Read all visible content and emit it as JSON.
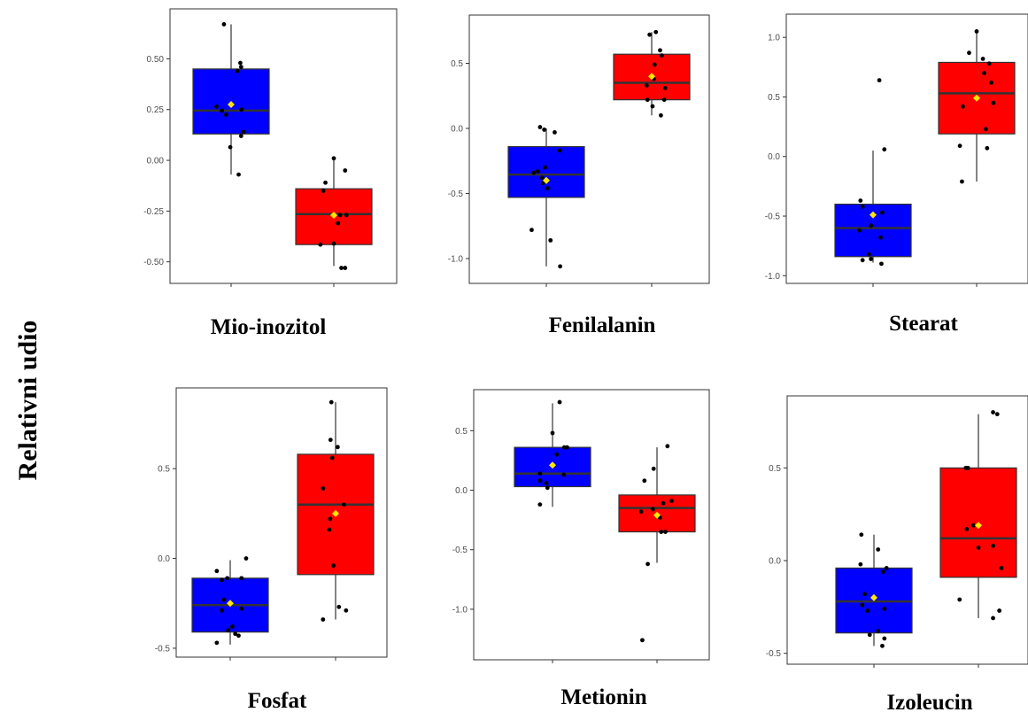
{
  "figure": {
    "ylabel": "Relativni udio"
  },
  "chart_data": [
    {
      "type": "box",
      "title": "Mio-inozitol",
      "ylim": [
        -0.58,
        0.72
      ],
      "yticks": [
        "0.50",
        "0.25",
        "0.00",
        "-0.25",
        "-0.50"
      ],
      "groups": [
        {
          "color": "#0000FF",
          "box": {
            "q1": 0.13,
            "median": 0.245,
            "q3": 0.45,
            "whisker_low": -0.07,
            "whisker_high": 0.67
          },
          "mean": 0.275,
          "points": [
            [
              -0.17,
              0.67
            ],
            [
              0.15,
              0.44
            ],
            [
              0.22,
              0.48
            ],
            [
              0.24,
              0.46
            ],
            [
              -0.35,
              0.265
            ],
            [
              -0.22,
              0.245
            ],
            [
              -0.12,
              0.225
            ],
            [
              0.25,
              0.25
            ],
            [
              0.3,
              0.14
            ],
            [
              0.24,
              0.12
            ],
            [
              -0.02,
              0.065
            ],
            [
              0.18,
              -0.07
            ]
          ]
        },
        {
          "color": "#FF0000",
          "box": {
            "q1": -0.415,
            "median": -0.265,
            "q3": -0.14,
            "whisker_low": -0.52,
            "whisker_high": 0.01
          },
          "mean": -0.27,
          "points": [
            [
              0.0,
              0.01
            ],
            [
              0.27,
              -0.05
            ],
            [
              -0.2,
              -0.11
            ],
            [
              -0.25,
              -0.15
            ],
            [
              0.15,
              -0.27
            ],
            [
              0.3,
              -0.27
            ],
            [
              0.1,
              -0.31
            ],
            [
              -0.32,
              -0.415
            ],
            [
              0.0,
              -0.41
            ],
            [
              0.18,
              -0.53
            ],
            [
              0.27,
              -0.53
            ]
          ]
        }
      ]
    },
    {
      "type": "box",
      "title": "Fenilalanin",
      "ylim": [
        -1.15,
        0.83
      ],
      "yticks": [
        "0.5",
        "0.0",
        "-0.5",
        "-1.0"
      ],
      "groups": [
        {
          "color": "#0000FF",
          "box": {
            "q1": -0.53,
            "median": -0.355,
            "q3": -0.14,
            "whisker_low": -1.06,
            "whisker_high": -0.0
          },
          "mean": -0.4,
          "points": [
            [
              -0.15,
              0.01
            ],
            [
              -0.05,
              -0.01
            ],
            [
              0.2,
              -0.03
            ],
            [
              0.32,
              -0.17
            ],
            [
              -0.3,
              -0.34
            ],
            [
              -0.2,
              -0.33
            ],
            [
              -0.1,
              -0.38
            ],
            [
              -0.03,
              -0.3
            ],
            [
              0.03,
              -0.46
            ],
            [
              -0.08,
              -0.42
            ],
            [
              -0.35,
              -0.78
            ],
            [
              0.1,
              -0.86
            ],
            [
              0.33,
              -1.06
            ]
          ]
        },
        {
          "color": "#FF0000",
          "box": {
            "q1": 0.22,
            "median": 0.35,
            "q3": 0.57,
            "whisker_low": 0.1,
            "whisker_high": 0.74
          },
          "mean": 0.4,
          "points": [
            [
              -0.05,
              0.72
            ],
            [
              0.1,
              0.74
            ],
            [
              0.2,
              0.6
            ],
            [
              0.07,
              0.49
            ],
            [
              0.24,
              0.56
            ],
            [
              -0.12,
              0.33
            ],
            [
              0.05,
              0.38
            ],
            [
              0.32,
              0.31
            ],
            [
              0.3,
              0.22
            ],
            [
              -0.1,
              0.22
            ],
            [
              0.02,
              0.17
            ],
            [
              0.22,
              0.1
            ]
          ]
        }
      ]
    },
    {
      "type": "box",
      "title": "Stearat",
      "ylim": [
        -1.02,
        1.15
      ],
      "yticks": [
        "1.0",
        "0.5",
        "0.0",
        "-0.5",
        "-1.0"
      ],
      "groups": [
        {
          "color": "#0000FF",
          "box": {
            "q1": -0.84,
            "median": -0.6,
            "q3": -0.4,
            "whisker_low": -0.89,
            "whisker_high": 0.05
          },
          "mean": -0.49,
          "points": [
            [
              0.15,
              0.64
            ],
            [
              0.27,
              0.06
            ],
            [
              -0.3,
              -0.37
            ],
            [
              -0.25,
              -0.42
            ],
            [
              0.22,
              -0.47
            ],
            [
              -0.05,
              -0.58
            ],
            [
              -0.33,
              -0.62
            ],
            [
              0.18,
              -0.68
            ],
            [
              -0.1,
              -0.82
            ],
            [
              -0.25,
              -0.87
            ],
            [
              -0.05,
              -0.86
            ],
            [
              0.2,
              -0.9
            ]
          ]
        },
        {
          "color": "#FF0000",
          "box": {
            "q1": 0.19,
            "median": 0.53,
            "q3": 0.79,
            "whisker_low": -0.21,
            "whisker_high": 1.05
          },
          "mean": 0.49,
          "points": [
            [
              0.0,
              1.05
            ],
            [
              -0.18,
              0.87
            ],
            [
              0.15,
              0.82
            ],
            [
              0.3,
              0.78
            ],
            [
              0.18,
              0.7
            ],
            [
              0.35,
              0.62
            ],
            [
              0.4,
              0.45
            ],
            [
              -0.33,
              0.42
            ],
            [
              -0.4,
              0.09
            ],
            [
              0.25,
              0.07
            ],
            [
              -0.35,
              -0.21
            ],
            [
              0.22,
              0.23
            ]
          ]
        }
      ]
    },
    {
      "type": "box",
      "title": "Fosfat",
      "ylim": [
        -0.52,
        0.92
      ],
      "yticks": [
        "0.5",
        "0.0",
        "-0.5"
      ],
      "groups": [
        {
          "color": "#0000FF",
          "box": {
            "q1": -0.41,
            "median": -0.26,
            "q3": -0.11,
            "whisker_low": -0.48,
            "whisker_high": -0.01
          },
          "mean": -0.25,
          "points": [
            [
              -0.32,
              -0.07
            ],
            [
              0.38,
              0.0
            ],
            [
              -0.2,
              -0.12
            ],
            [
              -0.07,
              -0.11
            ],
            [
              0.27,
              -0.11
            ],
            [
              -0.15,
              -0.23
            ],
            [
              -0.2,
              -0.29
            ],
            [
              0.27,
              -0.28
            ],
            [
              0.05,
              -0.38
            ],
            [
              -0.05,
              -0.4
            ],
            [
              0.2,
              -0.43
            ],
            [
              0.12,
              -0.42
            ],
            [
              -0.32,
              -0.47
            ]
          ]
        },
        {
          "color": "#FF0000",
          "box": {
            "q1": -0.09,
            "median": 0.3,
            "q3": 0.58,
            "whisker_low": -0.34,
            "whisker_high": 0.87
          },
          "mean": 0.25,
          "points": [
            [
              -0.1,
              0.87
            ],
            [
              -0.12,
              0.66
            ],
            [
              0.05,
              0.62
            ],
            [
              -0.08,
              0.56
            ],
            [
              -0.3,
              0.39
            ],
            [
              0.2,
              0.3
            ],
            [
              -0.13,
              0.22
            ],
            [
              -0.15,
              0.16
            ],
            [
              -0.05,
              -0.04
            ],
            [
              0.08,
              -0.27
            ],
            [
              0.25,
              -0.29
            ],
            [
              -0.3,
              -0.34
            ]
          ]
        }
      ]
    },
    {
      "type": "box",
      "title": "Metionin",
      "ylim": [
        -1.38,
        0.8
      ],
      "yticks": [
        "0.5",
        "0.0",
        "-0.5",
        "-1.0"
      ],
      "groups": [
        {
          "color": "#0000FF",
          "box": {
            "q1": 0.03,
            "median": 0.14,
            "q3": 0.36,
            "whisker_low": -0.14,
            "whisker_high": 0.73
          },
          "mean": 0.21,
          "points": [
            [
              0.17,
              0.74
            ],
            [
              0.0,
              0.48
            ],
            [
              0.28,
              0.36
            ],
            [
              0.35,
              0.36
            ],
            [
              0.1,
              0.3
            ],
            [
              -0.3,
              0.14
            ],
            [
              -0.3,
              0.08
            ],
            [
              -0.15,
              0.06
            ],
            [
              0.27,
              0.13
            ],
            [
              -0.12,
              0.02
            ],
            [
              -0.3,
              -0.12
            ]
          ]
        },
        {
          "color": "#FF0000",
          "box": {
            "q1": -0.35,
            "median": -0.15,
            "q3": -0.04,
            "whisker_low": -0.61,
            "whisker_high": 0.36
          },
          "mean": -0.21,
          "points": [
            [
              0.25,
              0.37
            ],
            [
              -0.08,
              0.18
            ],
            [
              -0.3,
              0.08
            ],
            [
              0.35,
              -0.09
            ],
            [
              -0.38,
              -0.18
            ],
            [
              0.15,
              -0.11
            ],
            [
              -0.1,
              -0.16
            ],
            [
              0.07,
              -0.23
            ],
            [
              0.1,
              -0.35
            ],
            [
              0.2,
              -0.35
            ],
            [
              -0.22,
              -0.62
            ],
            [
              -0.35,
              -1.26
            ]
          ]
        }
      ]
    },
    {
      "type": "box",
      "title": "Izoleucin",
      "ylim": [
        -0.53,
        0.86
      ],
      "yticks": [
        "0.5",
        "0.0",
        "-0.5"
      ],
      "groups": [
        {
          "color": "#0000FF",
          "box": {
            "q1": -0.39,
            "median": -0.22,
            "q3": -0.04,
            "whisker_low": -0.46,
            "whisker_high": 0.14
          },
          "mean": -0.2,
          "points": [
            [
              -0.3,
              0.14
            ],
            [
              0.1,
              0.06
            ],
            [
              -0.32,
              -0.02
            ],
            [
              0.22,
              -0.06
            ],
            [
              0.3,
              -0.04
            ],
            [
              -0.22,
              -0.18
            ],
            [
              -0.28,
              -0.24
            ],
            [
              0.25,
              -0.26
            ],
            [
              -0.15,
              -0.27
            ],
            [
              0.1,
              -0.38
            ],
            [
              -0.1,
              -0.4
            ],
            [
              0.25,
              -0.42
            ],
            [
              0.2,
              -0.46
            ]
          ]
        },
        {
          "color": "#FF0000",
          "box": {
            "q1": -0.09,
            "median": 0.12,
            "q3": 0.5,
            "whisker_low": -0.31,
            "whisker_high": 0.79
          },
          "mean": 0.19,
          "points": [
            [
              0.35,
              0.8
            ],
            [
              0.45,
              0.79
            ],
            [
              -0.3,
              0.5
            ],
            [
              -0.25,
              0.5
            ],
            [
              -0.12,
              0.19
            ],
            [
              -0.28,
              0.17
            ],
            [
              0.0,
              0.07
            ],
            [
              0.35,
              0.08
            ],
            [
              0.55,
              -0.04
            ],
            [
              -0.45,
              -0.21
            ],
            [
              0.5,
              -0.27
            ],
            [
              0.35,
              -0.31
            ]
          ]
        }
      ]
    }
  ]
}
